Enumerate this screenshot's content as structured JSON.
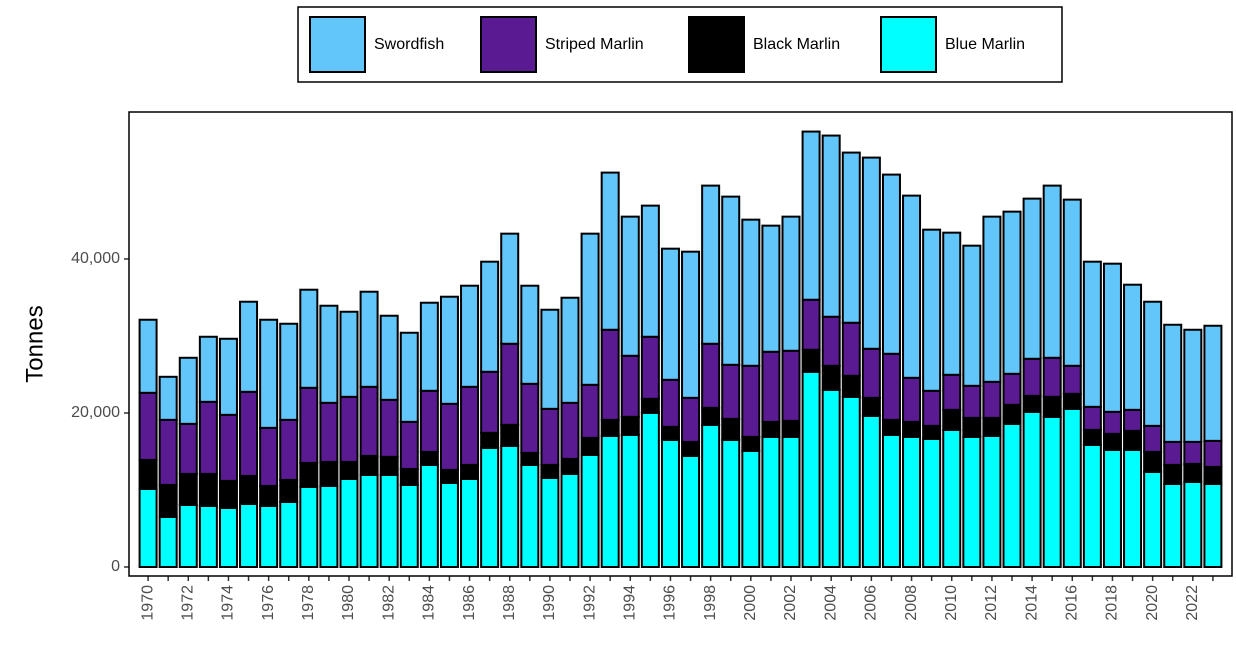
{
  "chart_data": {
    "type": "stacked_bar",
    "ylabel": "Tonnes",
    "categories": [
      "1970",
      null,
      "1972",
      null,
      "1974",
      null,
      "1976",
      null,
      "1978",
      null,
      "1980",
      null,
      "1982",
      null,
      "1984",
      null,
      "1986",
      null,
      "1988",
      null,
      "1990",
      null,
      "1992",
      null,
      "1994",
      null,
      "1996",
      null,
      "1998",
      null,
      "2000",
      null,
      "2002",
      null,
      "2004",
      null,
      "2006",
      null,
      "2008",
      null,
      "2010",
      null,
      "2012",
      null,
      "2014",
      null,
      "2016",
      null,
      "2018",
      null,
      "2020",
      null,
      "2022",
      null
    ],
    "series": [
      {
        "name": "Swordfish",
        "color": "#63c6fa",
        "values": [
          9490,
          5590,
          8580,
          8450,
          9880,
          11700,
          14040,
          12480,
          12740,
          12610,
          11050,
          12350,
          10920,
          11570,
          11440,
          13910,
          13130,
          14300,
          14300,
          12740,
          12870,
          13650,
          19630,
          20410,
          18070,
          17030,
          17030,
          18980,
          20540,
          21840,
          18980,
          16380,
          17420,
          21840,
          23530,
          22100,
          24830,
          23270,
          23660,
          20930,
          18460,
          18200,
          21450,
          21060,
          20800,
          22360,
          21580,
          18850,
          19240,
          16250,
          16120,
          15210,
          14560,
          14950
        ]
      },
      {
        "name": "Striped Marlin",
        "color": "#5a1a91",
        "values": [
          8710,
          8450,
          6500,
          9360,
          8580,
          10920,
          7540,
          7800,
          9750,
          7670,
          8450,
          8970,
          7410,
          6110,
          7930,
          8580,
          10140,
          7930,
          10530,
          8970,
          7280,
          7280,
          6890,
          11700,
          7930,
          8060,
          6110,
          5720,
          8320,
          7020,
          9230,
          9100,
          9100,
          6500,
          6370,
          6890,
          6370,
          8580,
          5720,
          4550,
          4550,
          4160,
          4680,
          4030,
          4810,
          5070,
          3640,
          2990,
          2860,
          2730,
          3380,
          2990,
          2860,
          3380
        ]
      },
      {
        "name": "Black Marlin",
        "color": "#000000",
        "values": [
          3770,
          4160,
          4030,
          4160,
          3510,
          3640,
          2600,
          2860,
          3120,
          3120,
          2210,
          2470,
          2340,
          2080,
          1690,
          1690,
          1820,
          1950,
          2730,
          1560,
          1690,
          1950,
          2210,
          2080,
          2340,
          1820,
          1690,
          1820,
          2210,
          2730,
          1820,
          1950,
          2080,
          2860,
          3120,
          2730,
          2340,
          1950,
          1950,
          1690,
          2600,
          2470,
          2340,
          2470,
          2080,
          2600,
          1950,
          1950,
          2080,
          2470,
          2600,
          2470,
          2340,
          2210
        ]
      },
      {
        "name": "Blue Marlin",
        "color": "#00ffff",
        "values": [
          10140,
          6500,
          8060,
          7930,
          7670,
          8190,
          7930,
          8450,
          10400,
          10530,
          11440,
          11960,
          11960,
          10660,
          13260,
          10920,
          11440,
          15470,
          15730,
          13260,
          11570,
          12090,
          14560,
          17030,
          17160,
          20020,
          16510,
          14430,
          18460,
          16510,
          15080,
          16900,
          16900,
          25350,
          23010,
          22100,
          19630,
          17160,
          16900,
          16640,
          17810,
          16900,
          17030,
          18590,
          20150,
          19500,
          20540,
          15860,
          15210,
          15210,
          12350,
          10790,
          11050,
          10790
        ]
      }
    ],
    "ylim": [
      -1170,
      59090
    ],
    "yticks": [
      0,
      {
        "value": 20000,
        "label": "20,000"
      },
      {
        "value": 40000,
        "label": "40,000"
      }
    ],
    "grid": false,
    "legend": "top"
  }
}
